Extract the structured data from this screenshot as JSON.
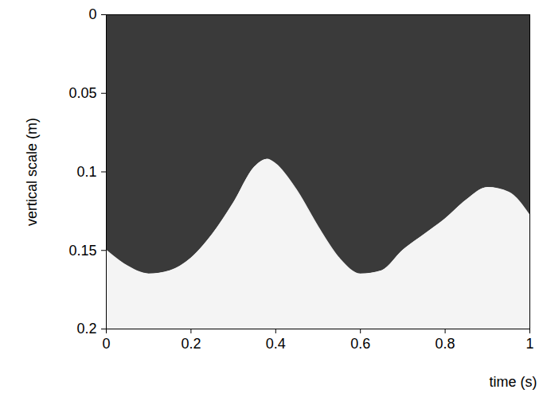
{
  "chart_data": {
    "type": "area",
    "xlabel": "time (s)",
    "ylabel": "vertical scale (m)",
    "x": [
      0,
      0.05,
      0.1,
      0.15,
      0.2,
      0.25,
      0.3,
      0.35,
      0.38,
      0.4,
      0.45,
      0.5,
      0.55,
      0.6,
      0.65,
      0.7,
      0.75,
      0.8,
      0.85,
      0.9,
      0.95,
      1
    ],
    "values": [
      0.15,
      0.16,
      0.165,
      0.163,
      0.155,
      0.14,
      0.12,
      0.097,
      0.092,
      0.095,
      0.112,
      0.135,
      0.155,
      0.165,
      0.163,
      0.15,
      0.14,
      0.13,
      0.118,
      0.11,
      0.113,
      0.128
    ],
    "color": "#f4f4f4",
    "xlim": [
      0,
      1
    ],
    "ylim": [
      0,
      0.2
    ],
    "xticks": [
      0,
      0.2,
      0.4,
      0.6,
      0.8,
      1
    ],
    "yticks": [
      0,
      0.05,
      0.1,
      0.15,
      0.2
    ]
  }
}
